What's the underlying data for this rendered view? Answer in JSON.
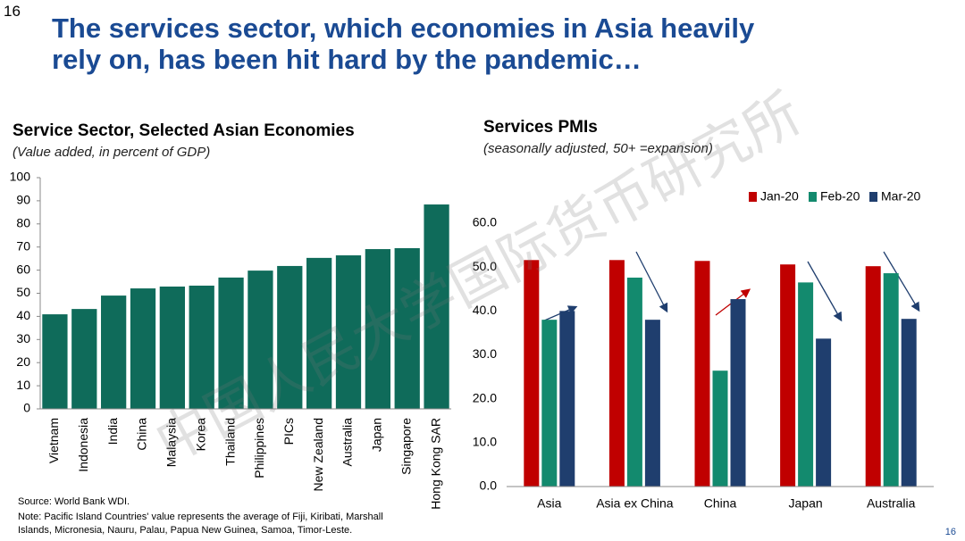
{
  "page_number": "16",
  "title_lines": [
    "The services sector, which economies in Asia heavily",
    "rely on, has been hit hard by the pandemic…"
  ],
  "watermark": "中国人民大学国际货币研究所",
  "source": "Source: World Bank WDI.",
  "note_lines": [
    "Note: Pacific Island Countries' value represents the average of Fiji, Kiribati, Marshall",
    "Islands, Micronesia, Nauru, Palau, Papua New Guinea, Samoa, Timor-Leste."
  ],
  "chart_data": [
    {
      "type": "bar",
      "title": "Service Sector, Selected Asian Economies",
      "subtitle": "(Value added, in percent of GDP)",
      "categories": [
        "Vietnam",
        "Indonesia",
        "India",
        "China",
        "Malaysia",
        "Korea",
        "Thailand",
        "Philippines",
        "PICs",
        "New Zealand",
        "Australia",
        "Japan",
        "Singapore",
        "Hong Kong SAR"
      ],
      "values": [
        40.9,
        43.2,
        49,
        52.1,
        52.9,
        53.3,
        56.8,
        59.8,
        61.8,
        65.3,
        66.4,
        69.1,
        69.5,
        88.4
      ],
      "color": "#0f6b5a",
      "ylim": [
        0,
        100
      ],
      "yticks": [
        0,
        10,
        20,
        30,
        40,
        50,
        60,
        70,
        80,
        90,
        100
      ],
      "grid": false
    },
    {
      "type": "bar",
      "title": "Services PMIs",
      "subtitle": "(seasonally adjusted, 50+ =expansion)",
      "categories": [
        "Asia",
        "Asia ex China",
        "China",
        "Japan",
        "Australia"
      ],
      "series": [
        {
          "name": "Jan-20",
          "color": "#c00000",
          "values": [
            51.6,
            51.6,
            51.4,
            50.6,
            50.2
          ]
        },
        {
          "name": "Feb-20",
          "color": "#138a6e",
          "values": [
            38.0,
            47.6,
            26.4,
            46.5,
            48.6
          ]
        },
        {
          "name": "Mar-20",
          "color": "#1f3e6e",
          "values": [
            40.0,
            38.0,
            42.7,
            33.7,
            38.2
          ]
        }
      ],
      "ylim": [
        0,
        60
      ],
      "yticks": [
        {
          "value": 0,
          "label": "0.0"
        },
        {
          "value": 10,
          "label": "10.0"
        },
        {
          "value": 20,
          "label": "20.0"
        },
        {
          "value": 30,
          "label": "30.0"
        },
        {
          "value": 40,
          "label": "40.0"
        },
        {
          "value": 50,
          "label": "50.0"
        },
        {
          "value": 60,
          "label": "60.0"
        }
      ],
      "grid": false,
      "legend": "top-right"
    }
  ]
}
